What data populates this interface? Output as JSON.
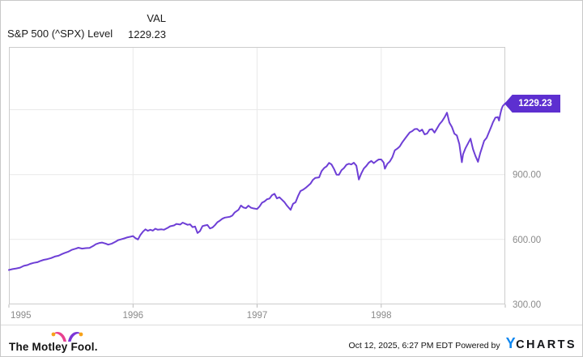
{
  "header": {
    "title": "S&P 500 (^SPX) Level",
    "column_label": "VAL",
    "value": "1229.23"
  },
  "value_tag": {
    "text": "1229.23",
    "background": "#5d2fd0"
  },
  "colors": {
    "line": "#6e3fd6",
    "tag_background": "#5d2fd0",
    "grid": "#e9e9e9",
    "plot_border": "#cccccc",
    "axis_text": "#8a8a8a",
    "ycharts_blue": "#0d86f0",
    "mf_pink": "#e8418f",
    "mf_purple": "#7c36d6",
    "mf_orange": "#f7a21a"
  },
  "footer": {
    "brand": "The Motley Fool.",
    "timestamp": "Oct 12, 2025, 6:27 PM EDT",
    "powered_by": "Powered by",
    "ycharts_y": "Y",
    "ycharts_rest": "CHARTS"
  },
  "chart_data": {
    "type": "line",
    "title": "S&P 500 (^SPX) Level",
    "xlabel": "",
    "ylabel": "",
    "grid": true,
    "legend": "none",
    "x_axis": {
      "range": [
        1995,
        1999
      ],
      "tick_positions": [
        1995,
        1996,
        1997,
        1998,
        1999
      ],
      "tick_labels": [
        {
          "pos": 1995,
          "label": "1995"
        },
        {
          "pos": 1996,
          "label": "1996"
        },
        {
          "pos": 1997,
          "label": "1997"
        },
        {
          "pos": 1998,
          "label": "1998"
        }
      ],
      "gridline_positions": [
        1996,
        1997,
        1998
      ]
    },
    "y_axis": {
      "range": [
        300,
        1490
      ],
      "side": "right",
      "gridline_values": [
        600,
        900,
        1200
      ],
      "tick_labels": [
        {
          "value": 300,
          "label": "300.00"
        },
        {
          "value": 600,
          "label": "600.00"
        },
        {
          "value": 900,
          "label": "900.00"
        }
      ]
    },
    "series": [
      {
        "name": "S&P 500 (^SPX) Level",
        "color": "#6e3fd6",
        "last_value": 1229.23,
        "points": [
          [
            1995.0,
            459
          ],
          [
            1995.03,
            463
          ],
          [
            1995.06,
            466
          ],
          [
            1995.09,
            470
          ],
          [
            1995.12,
            478
          ],
          [
            1995.15,
            482
          ],
          [
            1995.17,
            487
          ],
          [
            1995.2,
            492
          ],
          [
            1995.23,
            495
          ],
          [
            1995.25,
            500
          ],
          [
            1995.28,
            506
          ],
          [
            1995.31,
            509
          ],
          [
            1995.34,
            514
          ],
          [
            1995.37,
            521
          ],
          [
            1995.4,
            525
          ],
          [
            1995.43,
            533
          ],
          [
            1995.45,
            538
          ],
          [
            1995.48,
            544
          ],
          [
            1995.51,
            553
          ],
          [
            1995.54,
            558
          ],
          [
            1995.56,
            562
          ],
          [
            1995.59,
            558
          ],
          [
            1995.62,
            560
          ],
          [
            1995.65,
            561
          ],
          [
            1995.68,
            570
          ],
          [
            1995.7,
            578
          ],
          [
            1995.73,
            584
          ],
          [
            1995.75,
            586
          ],
          [
            1995.78,
            581
          ],
          [
            1995.8,
            576
          ],
          [
            1995.83,
            581
          ],
          [
            1995.86,
            590
          ],
          [
            1995.88,
            597
          ],
          [
            1995.9,
            600
          ],
          [
            1995.93,
            605
          ],
          [
            1995.95,
            609
          ],
          [
            1995.98,
            613
          ],
          [
            1996.0,
            616
          ],
          [
            1996.02,
            606
          ],
          [
            1996.04,
            600
          ],
          [
            1996.06,
            621
          ],
          [
            1996.08,
            636
          ],
          [
            1996.1,
            647
          ],
          [
            1996.12,
            640
          ],
          [
            1996.14,
            645
          ],
          [
            1996.16,
            641
          ],
          [
            1996.18,
            650
          ],
          [
            1996.2,
            645
          ],
          [
            1996.23,
            647
          ],
          [
            1996.25,
            645
          ],
          [
            1996.28,
            654
          ],
          [
            1996.3,
            661
          ],
          [
            1996.33,
            665
          ],
          [
            1996.35,
            672
          ],
          [
            1996.38,
            669
          ],
          [
            1996.4,
            678
          ],
          [
            1996.42,
            673
          ],
          [
            1996.44,
            668
          ],
          [
            1996.46,
            670
          ],
          [
            1996.48,
            657
          ],
          [
            1996.5,
            660
          ],
          [
            1996.52,
            630
          ],
          [
            1996.54,
            639
          ],
          [
            1996.56,
            662
          ],
          [
            1996.58,
            665
          ],
          [
            1996.6,
            667
          ],
          [
            1996.62,
            651
          ],
          [
            1996.64,
            655
          ],
          [
            1996.66,
            666
          ],
          [
            1996.68,
            680
          ],
          [
            1996.7,
            687
          ],
          [
            1996.72,
            696
          ],
          [
            1996.74,
            701
          ],
          [
            1996.76,
            703
          ],
          [
            1996.78,
            705
          ],
          [
            1996.8,
            710
          ],
          [
            1996.82,
            725
          ],
          [
            1996.85,
            737
          ],
          [
            1996.87,
            757
          ],
          [
            1996.89,
            748
          ],
          [
            1996.91,
            745
          ],
          [
            1996.93,
            756
          ],
          [
            1996.95,
            747
          ],
          [
            1996.97,
            744
          ],
          [
            1997.0,
            741
          ],
          [
            1997.02,
            753
          ],
          [
            1997.04,
            770
          ],
          [
            1997.06,
            776
          ],
          [
            1997.08,
            786
          ],
          [
            1997.1,
            789
          ],
          [
            1997.12,
            805
          ],
          [
            1997.14,
            811
          ],
          [
            1997.16,
            790
          ],
          [
            1997.18,
            795
          ],
          [
            1997.2,
            784
          ],
          [
            1997.22,
            773
          ],
          [
            1997.24,
            757
          ],
          [
            1997.27,
            737
          ],
          [
            1997.29,
            765
          ],
          [
            1997.31,
            772
          ],
          [
            1997.33,
            801
          ],
          [
            1997.35,
            824
          ],
          [
            1997.37,
            830
          ],
          [
            1997.39,
            838
          ],
          [
            1997.41,
            848
          ],
          [
            1997.43,
            858
          ],
          [
            1997.45,
            876
          ],
          [
            1997.47,
            885
          ],
          [
            1997.5,
            887
          ],
          [
            1997.52,
            916
          ],
          [
            1997.54,
            930
          ],
          [
            1997.56,
            938
          ],
          [
            1997.58,
            954
          ],
          [
            1997.6,
            947
          ],
          [
            1997.62,
            926
          ],
          [
            1997.64,
            900
          ],
          [
            1997.66,
            899
          ],
          [
            1997.68,
            920
          ],
          [
            1997.7,
            930
          ],
          [
            1997.72,
            945
          ],
          [
            1997.74,
            950
          ],
          [
            1997.76,
            947
          ],
          [
            1997.78,
            955
          ],
          [
            1997.8,
            941
          ],
          [
            1997.82,
            877
          ],
          [
            1997.84,
            905
          ],
          [
            1997.86,
            928
          ],
          [
            1997.88,
            940
          ],
          [
            1997.9,
            955
          ],
          [
            1997.92,
            963
          ],
          [
            1997.94,
            953
          ],
          [
            1997.96,
            962
          ],
          [
            1997.98,
            970
          ],
          [
            1998.0,
            970
          ],
          [
            1998.02,
            956
          ],
          [
            1998.03,
            927
          ],
          [
            1998.05,
            950
          ],
          [
            1998.07,
            961
          ],
          [
            1998.09,
            980
          ],
          [
            1998.11,
            1012
          ],
          [
            1998.13,
            1020
          ],
          [
            1998.15,
            1030
          ],
          [
            1998.17,
            1049
          ],
          [
            1998.19,
            1065
          ],
          [
            1998.21,
            1080
          ],
          [
            1998.23,
            1095
          ],
          [
            1998.25,
            1101
          ],
          [
            1998.27,
            1110
          ],
          [
            1998.29,
            1111
          ],
          [
            1998.31,
            1100
          ],
          [
            1998.33,
            1108
          ],
          [
            1998.35,
            1086
          ],
          [
            1998.37,
            1090
          ],
          [
            1998.39,
            1108
          ],
          [
            1998.41,
            1110
          ],
          [
            1998.43,
            1094
          ],
          [
            1998.45,
            1113
          ],
          [
            1998.47,
            1133
          ],
          [
            1998.49,
            1146
          ],
          [
            1998.51,
            1164
          ],
          [
            1998.53,
            1186
          ],
          [
            1998.55,
            1140
          ],
          [
            1998.57,
            1120
          ],
          [
            1998.59,
            1089
          ],
          [
            1998.61,
            1081
          ],
          [
            1998.63,
            1041
          ],
          [
            1998.65,
            957
          ],
          [
            1998.66,
            994
          ],
          [
            1998.68,
            1023
          ],
          [
            1998.7,
            1044
          ],
          [
            1998.72,
            1066
          ],
          [
            1998.73,
            1042
          ],
          [
            1998.74,
            1017
          ],
          [
            1998.76,
            986
          ],
          [
            1998.78,
            959
          ],
          [
            1998.8,
            1002
          ],
          [
            1998.81,
            1020
          ],
          [
            1998.83,
            1056
          ],
          [
            1998.85,
            1070
          ],
          [
            1998.87,
            1098
          ],
          [
            1998.89,
            1125
          ],
          [
            1998.9,
            1141
          ],
          [
            1998.92,
            1163
          ],
          [
            1998.94,
            1166
          ],
          [
            1998.95,
            1150
          ],
          [
            1998.96,
            1180
          ],
          [
            1998.97,
            1203
          ],
          [
            1998.98,
            1217
          ],
          [
            1999.0,
            1229.23
          ]
        ]
      }
    ]
  }
}
